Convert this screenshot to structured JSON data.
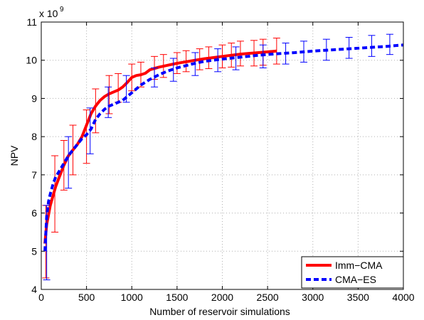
{
  "chart_data": {
    "type": "line",
    "xlabel": "Number of reservoir simulations",
    "ylabel": "NPV",
    "exponent_label": "x 10",
    "exponent_power": "9",
    "xlim": [
      0,
      4000
    ],
    "ylim": [
      4,
      11
    ],
    "y_scale_multiplier": 1000000000,
    "grid": true,
    "grid_style": "dotted",
    "legend_position": "bottom-right",
    "x_ticks": [
      0,
      500,
      1000,
      1500,
      2000,
      2500,
      3000,
      3500,
      4000
    ],
    "y_ticks": [
      4,
      5,
      6,
      7,
      8,
      9,
      10,
      11
    ],
    "series": [
      {
        "name": "Imm−CMA",
        "color": "#ff0000",
        "style": "solid",
        "x": [
          40,
          60,
          80,
          100,
          130,
          160,
          200,
          250,
          300,
          350,
          400,
          450,
          500,
          550,
          600,
          650,
          700,
          750,
          800,
          850,
          900,
          950,
          1000,
          1050,
          1100,
          1150,
          1200,
          1300,
          1400,
          1500,
          1600,
          1700,
          1800,
          1900,
          2000,
          2100,
          2200,
          2300,
          2400,
          2500,
          2600
        ],
        "y": [
          5.2,
          5.7,
          5.95,
          6.2,
          6.45,
          6.7,
          6.95,
          7.25,
          7.5,
          7.65,
          7.8,
          8.0,
          8.3,
          8.6,
          8.8,
          8.95,
          9.05,
          9.12,
          9.17,
          9.22,
          9.3,
          9.42,
          9.55,
          9.6,
          9.62,
          9.66,
          9.75,
          9.82,
          9.87,
          9.92,
          9.96,
          10.0,
          10.04,
          10.07,
          10.1,
          10.13,
          10.16,
          10.18,
          10.2,
          10.22,
          10.24
        ],
        "errorbars": {
          "x": [
            50,
            150,
            250,
            350,
            500,
            600,
            750,
            850,
            1000,
            1100,
            1250,
            1350,
            1500,
            1600,
            1750,
            1850,
            2000,
            2100,
            2200,
            2350,
            2450,
            2600
          ],
          "center": [
            5.5,
            6.6,
            7.25,
            7.65,
            8.3,
            8.8,
            9.12,
            9.22,
            9.55,
            9.6,
            9.78,
            9.83,
            9.92,
            9.96,
            10.02,
            10.05,
            10.1,
            10.13,
            10.16,
            10.19,
            10.21,
            10.24
          ],
          "low": [
            4.3,
            5.5,
            6.6,
            7.0,
            7.3,
            8.1,
            8.6,
            8.9,
            9.2,
            9.3,
            9.5,
            9.55,
            9.65,
            9.7,
            9.75,
            9.78,
            9.8,
            9.82,
            9.85,
            9.85,
            9.87,
            9.9
          ],
          "high": [
            6.2,
            7.5,
            7.9,
            8.3,
            8.7,
            9.25,
            9.6,
            9.65,
            9.9,
            9.95,
            10.1,
            10.15,
            10.2,
            10.25,
            10.3,
            10.35,
            10.4,
            10.45,
            10.5,
            10.52,
            10.55,
            10.58
          ]
        }
      },
      {
        "name": "CMA−ES",
        "color": "#0000ff",
        "style": "dashed",
        "x": [
          40,
          60,
          80,
          100,
          130,
          160,
          200,
          250,
          300,
          350,
          400,
          450,
          500,
          550,
          600,
          650,
          700,
          750,
          800,
          850,
          900,
          950,
          1000,
          1100,
          1200,
          1300,
          1400,
          1500,
          1600,
          1700,
          1800,
          1900,
          2000,
          2200,
          2400,
          2600,
          2800,
          3000,
          3200,
          3400,
          3600,
          3800,
          4000
        ],
        "y": [
          5.0,
          5.9,
          6.3,
          6.5,
          6.75,
          6.95,
          7.1,
          7.3,
          7.5,
          7.65,
          7.8,
          7.95,
          8.05,
          8.2,
          8.45,
          8.6,
          8.72,
          8.8,
          8.85,
          8.9,
          8.95,
          9.05,
          9.15,
          9.35,
          9.5,
          9.62,
          9.72,
          9.8,
          9.86,
          9.92,
          9.97,
          10.0,
          10.03,
          10.08,
          10.13,
          10.17,
          10.2,
          10.24,
          10.27,
          10.3,
          10.33,
          10.36,
          10.4
        ],
        "errorbars": {
          "x": [
            60,
            300,
            540,
            740,
            940,
            1250,
            1460,
            1700,
            1950,
            2150,
            2450,
            2700,
            2900,
            3150,
            3400,
            3650,
            3850
          ],
          "center": [
            5.5,
            7.35,
            8.2,
            8.8,
            9.05,
            9.55,
            9.75,
            9.92,
            10.02,
            10.06,
            10.12,
            10.18,
            10.21,
            10.25,
            10.29,
            10.34,
            10.37
          ],
          "low": [
            4.25,
            6.65,
            7.55,
            8.5,
            8.9,
            9.3,
            9.45,
            9.6,
            9.7,
            9.75,
            9.8,
            9.9,
            9.95,
            10.0,
            10.05,
            10.1,
            10.15
          ],
          "high": [
            6.2,
            8.0,
            8.75,
            9.3,
            9.6,
            9.8,
            10.05,
            10.2,
            10.3,
            10.35,
            10.4,
            10.45,
            10.5,
            10.55,
            10.6,
            10.65,
            10.68
          ]
        }
      }
    ]
  }
}
